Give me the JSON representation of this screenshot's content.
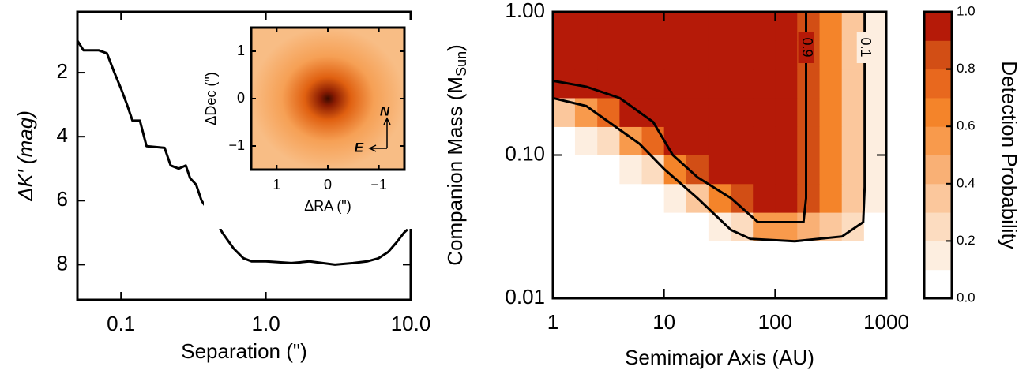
{
  "chart_data": [
    {
      "type": "line",
      "xlabel": "Separation (\")",
      "ylabel": "ΔK′ (mag)",
      "xscale": "log",
      "xlim": [
        0.05,
        10
      ],
      "xticks": [
        0.1,
        {
          "value": 1,
          "label": "1.0"
        },
        {
          "value": 10,
          "label": "10.0"
        }
      ],
      "ylim": [
        9.1,
        0.1
      ],
      "yticks": [
        2,
        4,
        6,
        8
      ],
      "series": [
        {
          "color": "#000000",
          "x": [
            0.05,
            0.055,
            0.07,
            0.08,
            0.09,
            0.1,
            0.11,
            0.12,
            0.135,
            0.15,
            0.2,
            0.22,
            0.25,
            0.28,
            0.3,
            0.33,
            0.36,
            0.4,
            0.45,
            0.5,
            0.6,
            0.7,
            0.8,
            1.0,
            1.5,
            2,
            3,
            4,
            5,
            6,
            7,
            8,
            9,
            9.5
          ],
          "values": [
            1.0,
            1.3,
            1.3,
            1.4,
            2.0,
            2.5,
            3.0,
            3.5,
            3.5,
            4.3,
            4.35,
            4.9,
            5.0,
            4.9,
            5.3,
            5.5,
            6.0,
            6.3,
            6.6,
            7.0,
            7.5,
            7.8,
            7.9,
            7.9,
            7.95,
            7.9,
            8.0,
            7.95,
            7.9,
            7.8,
            7.6,
            7.3,
            7.0,
            6.9
          ]
        }
      ],
      "inset": {
        "xlabel": "ΔRA (\")",
        "ylabel": "ΔDec (\")",
        "xlim": [
          1.5,
          -1.5
        ],
        "xticks": [
          1,
          0,
          {
            "value": -1,
            "label": "−1"
          }
        ],
        "ylim": [
          -1.5,
          1.5
        ],
        "yticks": [
          {
            "value": -1,
            "label": "−1"
          },
          0,
          1
        ],
        "compass": [
          "N",
          "E"
        ]
      }
    },
    {
      "type": "heatmap",
      "xlabel": "Semimajor Axis (AU)",
      "ylabel": {
        "text": "Companion Mass (M",
        "subscript": "Sun",
        "close": ")"
      },
      "xscale": "log",
      "yscale": "log",
      "xlim": [
        1,
        1000
      ],
      "xticks": [
        1,
        10,
        100,
        1000
      ],
      "ylim": [
        0.01,
        1
      ],
      "yticks": [
        0.01,
        {
          "value": 0.1,
          "label": "0.10"
        },
        {
          "value": 1,
          "label": "1.00"
        }
      ],
      "x_bins": [
        1,
        1.58,
        2.51,
        3.98,
        6.31,
        10,
        15.8,
        25.1,
        39.8,
        63.1,
        100,
        158,
        251,
        398,
        631,
        1000
      ],
      "y_bins": [
        0.01,
        0.0158,
        0.0251,
        0.0398,
        0.0631,
        0.1,
        0.158,
        0.251,
        0.398,
        0.631,
        1
      ],
      "z": [
        [
          0,
          0,
          0,
          0,
          0,
          0,
          0,
          0,
          0,
          0,
          0,
          0,
          0,
          0,
          0
        ],
        [
          0,
          0,
          0,
          0,
          0,
          0,
          0,
          0,
          0,
          0,
          0,
          0,
          0,
          0,
          0
        ],
        [
          0,
          0,
          0,
          0,
          0,
          0,
          0,
          0.1,
          0.2,
          0.5,
          0.5,
          0.45,
          0.35,
          0.2,
          0.05
        ],
        [
          0,
          0,
          0,
          0,
          0,
          0.1,
          0.3,
          0.6,
          0.8,
          0.95,
          0.95,
          0.85,
          0.65,
          0.35,
          0.1
        ],
        [
          0,
          0,
          0,
          0.1,
          0.2,
          0.6,
          0.8,
          0.95,
          0.95,
          0.95,
          0.95,
          0.85,
          0.65,
          0.35,
          0.1
        ],
        [
          0,
          0.1,
          0.2,
          0.5,
          0.7,
          0.95,
          0.95,
          0.95,
          0.95,
          0.95,
          0.95,
          0.85,
          0.65,
          0.35,
          0.1
        ],
        [
          0.3,
          0.5,
          0.7,
          0.95,
          0.95,
          0.95,
          0.95,
          0.95,
          0.95,
          0.95,
          0.95,
          0.85,
          0.65,
          0.35,
          0.1
        ],
        [
          0.95,
          0.95,
          0.95,
          0.95,
          0.95,
          0.95,
          0.95,
          0.95,
          0.95,
          0.95,
          0.95,
          0.85,
          0.65,
          0.35,
          0.1
        ],
        [
          0.95,
          0.95,
          0.95,
          0.95,
          0.95,
          0.95,
          0.95,
          0.95,
          0.95,
          0.95,
          0.95,
          0.85,
          0.65,
          0.35,
          0.1
        ],
        [
          0.95,
          0.95,
          0.95,
          0.95,
          0.95,
          0.95,
          0.95,
          0.95,
          0.95,
          0.95,
          0.95,
          0.85,
          0.65,
          0.35,
          0.1
        ]
      ],
      "contours": [
        {
          "level": 0.9,
          "color": "#000000",
          "x": [
            1,
            2,
            4,
            8,
            12,
            20,
            40,
            70,
            180,
            190,
            190
          ],
          "y": [
            0.33,
            0.3,
            0.25,
            0.17,
            0.1,
            0.07,
            0.05,
            0.034,
            0.034,
            0.05,
            1
          ]
        },
        {
          "level": 0.1,
          "color": "#000000",
          "x": [
            1,
            2,
            4,
            6,
            10,
            20,
            40,
            60,
            150,
            400,
            620,
            640,
            640
          ],
          "y": [
            0.25,
            0.22,
            0.15,
            0.12,
            0.08,
            0.05,
            0.03,
            0.026,
            0.025,
            0.027,
            0.034,
            0.06,
            1
          ]
        }
      ],
      "zlim": [
        0,
        1
      ],
      "colorbar": {
        "label": "Detection Probability",
        "colors": [
          "#ffffff",
          "#fdeee0",
          "#fcdcc0",
          "#fbc79c",
          "#f9b075",
          "#f89a4c",
          "#f4842a",
          "#e8681e",
          "#d24e15",
          "#b51a08"
        ],
        "ticks": [
          {
            "value": 0,
            "label": "0.0"
          },
          0.2,
          0.4,
          0.6,
          0.8,
          {
            "value": 1,
            "label": "1.0"
          }
        ]
      }
    }
  ]
}
